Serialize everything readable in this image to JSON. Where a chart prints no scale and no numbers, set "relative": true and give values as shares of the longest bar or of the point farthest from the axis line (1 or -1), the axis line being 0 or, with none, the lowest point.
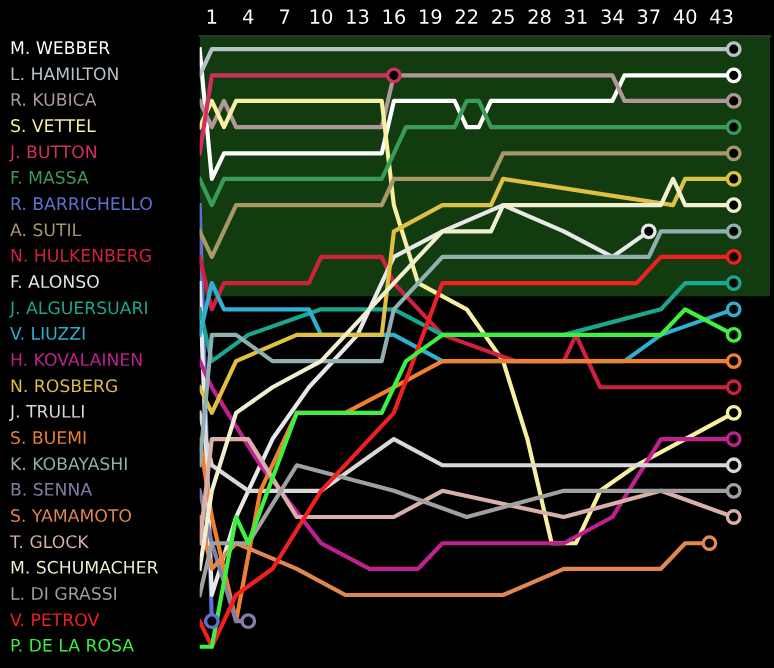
{
  "chart_data": {
    "type": "line",
    "relative": true,
    "line_style": "solid",
    "grid": false,
    "legend": false,
    "xlim": [
      0,
      47
    ],
    "xticks": [
      1,
      4,
      7,
      10,
      13,
      16,
      19,
      22,
      25,
      28,
      31,
      34,
      37,
      40,
      43
    ],
    "bands": [
      {
        "axis": "y",
        "from": 0.604,
        "to": 1.021,
        "color": "#123c10"
      }
    ],
    "series": [
      {
        "name": "M. WEBBER",
        "color": "#ffffff",
        "x": [
          0,
          1,
          2,
          15,
          16,
          21,
          22,
          23,
          24,
          34,
          35,
          44
        ],
        "values": [
          1,
          0.792,
          0.833,
          0.833,
          0.917,
          0.917,
          0.875,
          0.875,
          0.917,
          0.917,
          0.958,
          0.958
        ]
      },
      {
        "name": "L. HAMILTON",
        "color": "#b8c0c8",
        "x": [
          0,
          1,
          44
        ],
        "values": [
          0.958,
          1,
          1
        ]
      },
      {
        "name": "R. KUBICA",
        "color": "#b09898",
        "x": [
          0,
          1,
          2,
          3,
          15,
          16,
          34,
          35,
          44
        ],
        "values": [
          0.917,
          0.875,
          0.917,
          0.875,
          0.875,
          0.958,
          0.958,
          0.917,
          0.917
        ]
      },
      {
        "name": "S. VETTEL",
        "color": "#f8f0a0",
        "x": [
          0,
          1,
          2,
          3,
          15,
          16,
          18,
          22,
          25,
          27,
          29,
          31,
          33,
          36,
          40,
          44
        ],
        "values": [
          0.875,
          0.917,
          0.875,
          0.917,
          0.917,
          0.75,
          0.625,
          0.583,
          0.5,
          0.375,
          0.208,
          0.208,
          0.292,
          0.333,
          0.375,
          0.417
        ]
      },
      {
        "name": "J. BUTTON",
        "color": "#d03060",
        "x": [
          0,
          1,
          15,
          16
        ],
        "values": [
          0.833,
          0.958,
          0.958,
          0.958
        ]
      },
      {
        "name": "F. MASSA",
        "color": "#3a9a58",
        "x": [
          0,
          1,
          2,
          15,
          16,
          17,
          21,
          22,
          23,
          24,
          44
        ],
        "values": [
          0.792,
          0.75,
          0.792,
          0.792,
          0.833,
          0.875,
          0.875,
          0.917,
          0.917,
          0.875,
          0.875
        ]
      },
      {
        "name": "R. BARRICHELLO",
        "color": "#6070d0",
        "x": [
          0,
          1
        ],
        "values": [
          0.75,
          0.083
        ]
      },
      {
        "name": "A. SUTIL",
        "color": "#a89868",
        "x": [
          0,
          1,
          3,
          15,
          16,
          24,
          25,
          44
        ],
        "values": [
          0.708,
          0.667,
          0.75,
          0.75,
          0.792,
          0.792,
          0.833,
          0.833
        ]
      },
      {
        "name": "N. HULKENBERG",
        "color": "#d02040",
        "x": [
          0,
          1,
          2,
          9,
          10,
          15,
          16,
          20,
          26,
          30,
          31,
          33,
          36,
          44
        ],
        "values": [
          0.667,
          0.583,
          0.625,
          0.625,
          0.667,
          0.667,
          0.625,
          0.542,
          0.5,
          0.5,
          0.542,
          0.458,
          0.458,
          0.458
        ]
      },
      {
        "name": "F. ALONSO",
        "color": "#e8e8e8",
        "x": [
          0,
          1,
          3,
          6,
          9,
          13,
          16,
          20,
          25,
          30,
          34,
          37
        ],
        "values": [
          0.625,
          0.125,
          0.25,
          0.375,
          0.458,
          0.542,
          0.667,
          0.708,
          0.75,
          0.708,
          0.667,
          0.708
        ]
      },
      {
        "name": "J. ALGUERSUARI",
        "color": "#18a890",
        "x": [
          0,
          1,
          4,
          10,
          16,
          20,
          30,
          38,
          40,
          44
        ],
        "values": [
          0.583,
          0.5,
          0.542,
          0.583,
          0.583,
          0.542,
          0.542,
          0.583,
          0.625,
          0.625
        ]
      },
      {
        "name": "V. LIUZZI",
        "color": "#30b0d0",
        "x": [
          0,
          1,
          2,
          9,
          10,
          15,
          16,
          20,
          35,
          38,
          44
        ],
        "values": [
          0.542,
          0.625,
          0.583,
          0.583,
          0.542,
          0.542,
          0.542,
          0.5,
          0.5,
          0.542,
          0.583
        ]
      },
      {
        "name": "H. KOVALAINEN",
        "color": "#c02090",
        "x": [
          0,
          1,
          5,
          10,
          14,
          18,
          20,
          30,
          34,
          38,
          44
        ],
        "values": [
          0.5,
          0.458,
          0.333,
          0.208,
          0.167,
          0.167,
          0.208,
          0.208,
          0.25,
          0.375,
          0.375
        ]
      },
      {
        "name": "N. ROSBERG",
        "color": "#e0c040",
        "x": [
          0,
          1,
          3,
          8,
          15,
          16,
          20,
          24,
          25,
          39,
          40,
          44
        ],
        "values": [
          0.458,
          0.417,
          0.5,
          0.542,
          0.542,
          0.708,
          0.75,
          0.75,
          0.792,
          0.75,
          0.792,
          0.792
        ]
      },
      {
        "name": "J. TRULLI",
        "color": "#d8d8d8",
        "x": [
          0,
          1,
          4,
          10,
          16,
          20,
          30,
          44
        ],
        "values": [
          0.417,
          0.333,
          0.292,
          0.292,
          0.375,
          0.333,
          0.333,
          0.333
        ]
      },
      {
        "name": "S. BUEMI",
        "color": "#f08030",
        "x": [
          0,
          1,
          3,
          5,
          8,
          12,
          16,
          20,
          30,
          38,
          44
        ],
        "values": [
          0.375,
          0.25,
          0.083,
          0.292,
          0.417,
          0.417,
          0.458,
          0.5,
          0.5,
          0.5,
          0.5
        ]
      },
      {
        "name": "K. KOBAYASHI",
        "color": "#90b0b0",
        "x": [
          0,
          1,
          3,
          6,
          15,
          16,
          20,
          26,
          37,
          38,
          44
        ],
        "values": [
          0.333,
          0.542,
          0.542,
          0.5,
          0.5,
          0.583,
          0.667,
          0.667,
          0.667,
          0.708,
          0.708
        ]
      },
      {
        "name": "B. SENNA",
        "color": "#8080a8",
        "x": [
          0,
          1,
          3,
          4
        ],
        "values": [
          0.292,
          0.208,
          0.083,
          0.083
        ]
      },
      {
        "name": "S. YAMAMOTO",
        "color": "#e08850",
        "x": [
          0,
          1,
          3,
          8,
          12,
          25,
          30,
          38,
          40,
          42
        ],
        "values": [
          0.25,
          0.167,
          0.208,
          0.167,
          0.125,
          0.125,
          0.167,
          0.167,
          0.208,
          0.208
        ]
      },
      {
        "name": "T. GLOCK",
        "color": "#d8b0a8",
        "x": [
          0,
          1,
          4,
          8,
          16,
          20,
          30,
          38,
          44
        ],
        "values": [
          0.208,
          0.375,
          0.375,
          0.25,
          0.25,
          0.292,
          0.25,
          0.292,
          0.25
        ]
      },
      {
        "name": "M. SCHUMACHER",
        "color": "#f0f0d0",
        "x": [
          0,
          1,
          3,
          6,
          10,
          16,
          20,
          24,
          25,
          38,
          39,
          40,
          44
        ],
        "values": [
          0.167,
          0.292,
          0.417,
          0.458,
          0.5,
          0.625,
          0.708,
          0.708,
          0.75,
          0.75,
          0.792,
          0.75,
          0.75
        ]
      },
      {
        "name": "L. DI GRASSI",
        "color": "#a0a0a0",
        "x": [
          0,
          1,
          4,
          8,
          16,
          22,
          30,
          40,
          44
        ],
        "values": [
          0.125,
          0.208,
          0.208,
          0.333,
          0.292,
          0.25,
          0.292,
          0.292,
          0.292
        ]
      },
      {
        "name": "V. PETROV",
        "color": "#f02020",
        "x": [
          0,
          1,
          3,
          6,
          10,
          16,
          20,
          36,
          38,
          44
        ],
        "values": [
          0.083,
          0.042,
          0.125,
          0.167,
          0.292,
          0.417,
          0.625,
          0.625,
          0.667,
          0.667
        ]
      },
      {
        "name": "P. DE LA ROSA",
        "color": "#40f040",
        "x": [
          0,
          1,
          3,
          4,
          8,
          15,
          17,
          20,
          38,
          40,
          44
        ],
        "values": [
          0.042,
          0.042,
          0.25,
          0.208,
          0.417,
          0.417,
          0.5,
          0.542,
          0.542,
          0.583,
          0.542
        ]
      }
    ]
  }
}
